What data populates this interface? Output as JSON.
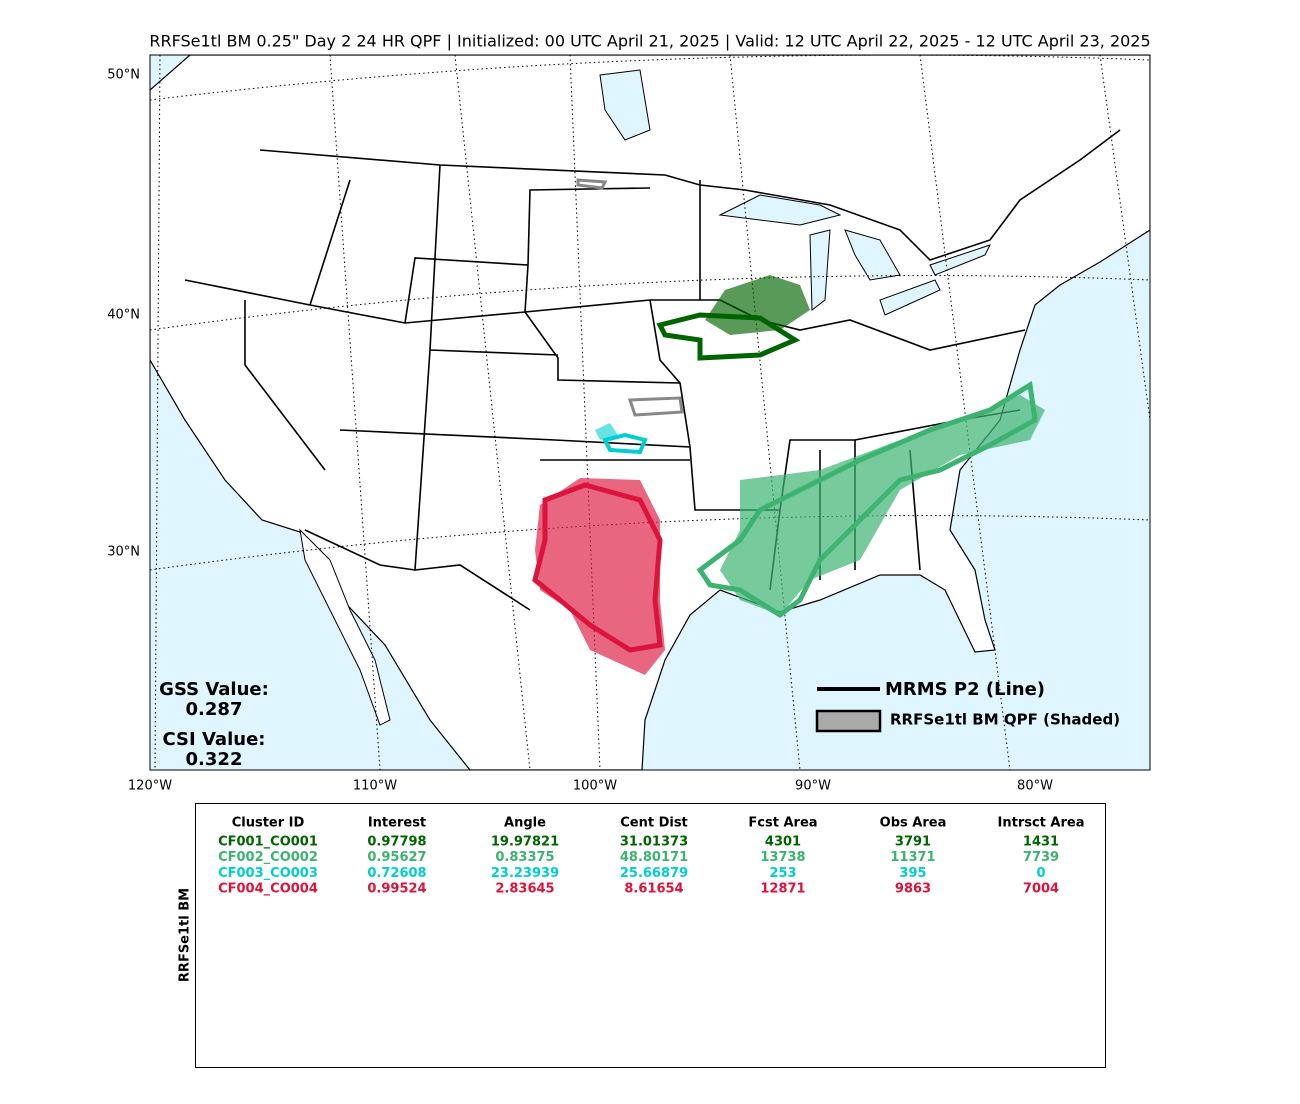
{
  "title": "RRFSe1tl BM 0.25\" Day 2 24 HR QPF | Initialized: 00 UTC April 21, 2025 | Valid: 12 UTC April 22, 2025 - 12 UTC April 23, 2025",
  "map": {
    "lat_labels": [
      "50°N",
      "40°N",
      "30°N"
    ],
    "lon_labels": [
      "120°W",
      "110°W",
      "100°W",
      "90°W",
      "80°W"
    ],
    "stats": [
      {
        "label": "GSS Value:",
        "value": "0.287"
      },
      {
        "label": "CSI Value:",
        "value": "0.322"
      }
    ],
    "legend": [
      "MRMS P2 (Line)",
      "RRFSe1tl BM QPF (Shaded)"
    ]
  },
  "table": {
    "side_label": "RRFSe1tl BM",
    "header": [
      "Cluster ID",
      "Interest",
      "Angle",
      "Cent Dist",
      "Fcst Area",
      "Obs Area",
      "Intrsct Area"
    ],
    "rows": [
      [
        "CF001_CO001",
        "0.97798",
        "19.97821",
        "31.01373",
        "4301",
        "3791",
        "1431"
      ],
      [
        "CF002_CO002",
        "0.95627",
        "0.83375",
        "48.80171",
        "13738",
        "11371",
        "7739"
      ],
      [
        "CF003_CO003",
        "0.72608",
        "23.23939",
        "25.66879",
        "253",
        "395",
        "0"
      ],
      [
        "CF004_CO004",
        "0.99524",
        "2.83645",
        "8.61654",
        "12871",
        "9863",
        "7004"
      ]
    ],
    "row_colors": [
      "#006400",
      "#3cb371",
      "#00ced1",
      "#dc143c"
    ]
  }
}
